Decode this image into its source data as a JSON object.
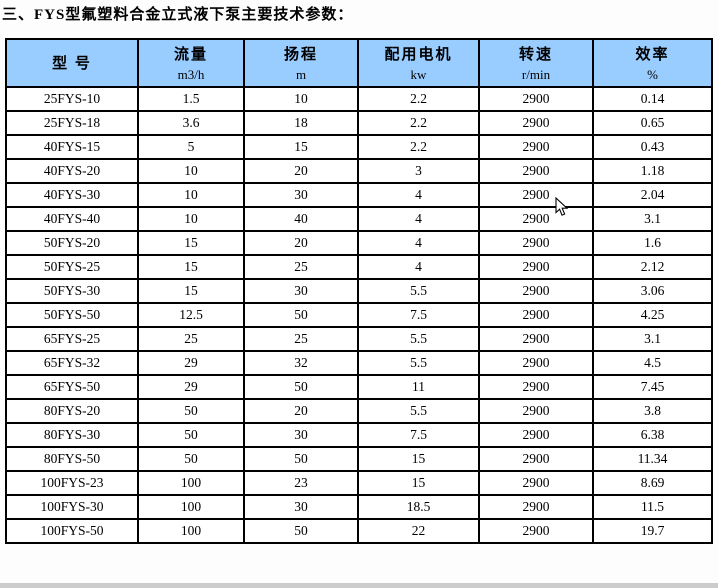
{
  "page": {
    "title": "三、FYS型氟塑料合金立式液下泵主要技术参数："
  },
  "table": {
    "header_bg": "#99ccff",
    "border_color": "#000000",
    "columns": [
      {
        "label": "型  号",
        "unit": ""
      },
      {
        "label": "流量",
        "unit": "m3/h"
      },
      {
        "label": "扬程",
        "unit": "m"
      },
      {
        "label": "配用电机",
        "unit": "kw"
      },
      {
        "label": "转速",
        "unit": "r/min"
      },
      {
        "label": "效率",
        "unit": "%"
      }
    ],
    "rows": [
      [
        "25FYS-10",
        "1.5",
        "10",
        "2.2",
        "2900",
        "0.14"
      ],
      [
        "25FYS-18",
        "3.6",
        "18",
        "2.2",
        "2900",
        "0.65"
      ],
      [
        "40FYS-15",
        "5",
        "15",
        "2.2",
        "2900",
        "0.43"
      ],
      [
        "40FYS-20",
        "10",
        "20",
        "3",
        "2900",
        "1.18"
      ],
      [
        "40FYS-30",
        "10",
        "30",
        "4",
        "2900",
        "2.04"
      ],
      [
        "40FYS-40",
        "10",
        "40",
        "4",
        "2900",
        "3.1"
      ],
      [
        "50FYS-20",
        "15",
        "20",
        "4",
        "2900",
        "1.6"
      ],
      [
        "50FYS-25",
        "15",
        "25",
        "4",
        "2900",
        "2.12"
      ],
      [
        "50FYS-30",
        "15",
        "30",
        "5.5",
        "2900",
        "3.06"
      ],
      [
        "50FYS-50",
        "12.5",
        "50",
        "7.5",
        "2900",
        "4.25"
      ],
      [
        "65FYS-25",
        "25",
        "25",
        "5.5",
        "2900",
        "3.1"
      ],
      [
        "65FYS-32",
        "29",
        "32",
        "5.5",
        "2900",
        "4.5"
      ],
      [
        "65FYS-50",
        "29",
        "50",
        "11",
        "2900",
        "7.45"
      ],
      [
        "80FYS-20",
        "50",
        "20",
        "5.5",
        "2900",
        "3.8"
      ],
      [
        "80FYS-30",
        "50",
        "30",
        "7.5",
        "2900",
        "6.38"
      ],
      [
        "80FYS-50",
        "50",
        "50",
        "15",
        "2900",
        "11.34"
      ],
      [
        "100FYS-23",
        "100",
        "23",
        "15",
        "2900",
        "8.69"
      ],
      [
        "100FYS-30",
        "100",
        "30",
        "18.5",
        "2900",
        "11.5"
      ],
      [
        "100FYS-50",
        "100",
        "50",
        "22",
        "2900",
        "19.7"
      ]
    ]
  }
}
